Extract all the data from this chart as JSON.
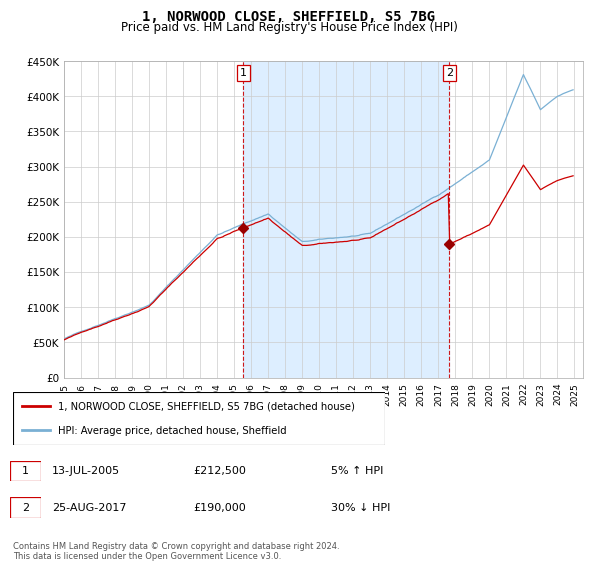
{
  "title": "1, NORWOOD CLOSE, SHEFFIELD, S5 7BG",
  "subtitle": "Price paid vs. HM Land Registry's House Price Index (HPI)",
  "title_fontsize": 10,
  "subtitle_fontsize": 8.5,
  "ylim": [
    0,
    450000
  ],
  "xlim_start": 1995.0,
  "xlim_end": 2025.5,
  "yticks": [
    0,
    50000,
    100000,
    150000,
    200000,
    250000,
    300000,
    350000,
    400000,
    450000
  ],
  "ytick_labels": [
    "£0",
    "£50K",
    "£100K",
    "£150K",
    "£200K",
    "£250K",
    "£300K",
    "£350K",
    "£400K",
    "£450K"
  ],
  "xtick_years": [
    1995,
    1996,
    1997,
    1998,
    1999,
    2000,
    2001,
    2002,
    2003,
    2004,
    2005,
    2006,
    2007,
    2008,
    2009,
    2010,
    2011,
    2012,
    2013,
    2014,
    2015,
    2016,
    2017,
    2018,
    2019,
    2020,
    2021,
    2022,
    2023,
    2024,
    2025
  ],
  "line_red_color": "#cc0000",
  "line_blue_color": "#7ab0d4",
  "fill_color": "#ddeeff",
  "marker_color": "#990000",
  "vline_color": "#cc0000",
  "grid_color": "#cccccc",
  "background_color": "#ffffff",
  "sale1_x": 2005.54,
  "sale1_y": 212500,
  "sale2_x": 2017.65,
  "sale2_y": 190000,
  "legend_label_red": "1, NORWOOD CLOSE, SHEFFIELD, S5 7BG (detached house)",
  "legend_label_blue": "HPI: Average price, detached house, Sheffield",
  "table_rows": [
    {
      "num": "1",
      "date": "13-JUL-2005",
      "price": "£212,500",
      "hpi": "5% ↑ HPI"
    },
    {
      "num": "2",
      "date": "25-AUG-2017",
      "price": "£190,000",
      "hpi": "30% ↓ HPI"
    }
  ],
  "footer": "Contains HM Land Registry data © Crown copyright and database right 2024.\nThis data is licensed under the Open Government Licence v3.0."
}
